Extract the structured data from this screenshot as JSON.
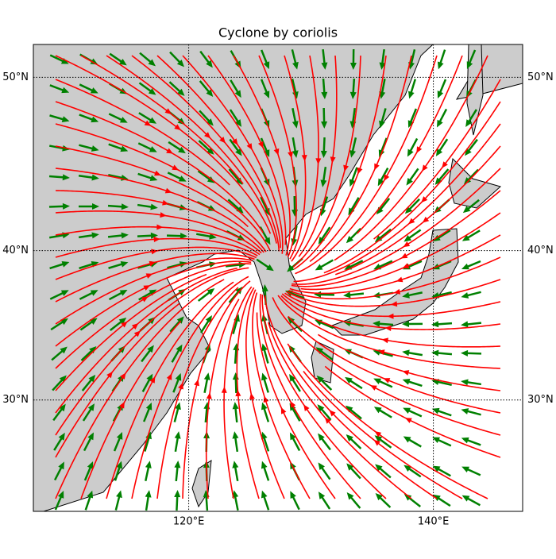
{
  "chart_data": {
    "type": "map",
    "title": "Cyclone by coriolis",
    "xlim": [
      107.3,
      147.3
    ],
    "ylim": [
      21.8,
      51.7
    ],
    "xticks": [
      {
        "value": 120,
        "label": "120°E"
      },
      {
        "value": 140,
        "label": "140°E"
      }
    ],
    "yticks": [
      {
        "value": 30,
        "label": "30°N"
      },
      {
        "value": 40,
        "label": "40°N"
      },
      {
        "value": 50,
        "label": "50°N"
      }
    ],
    "grid": true
  }
}
